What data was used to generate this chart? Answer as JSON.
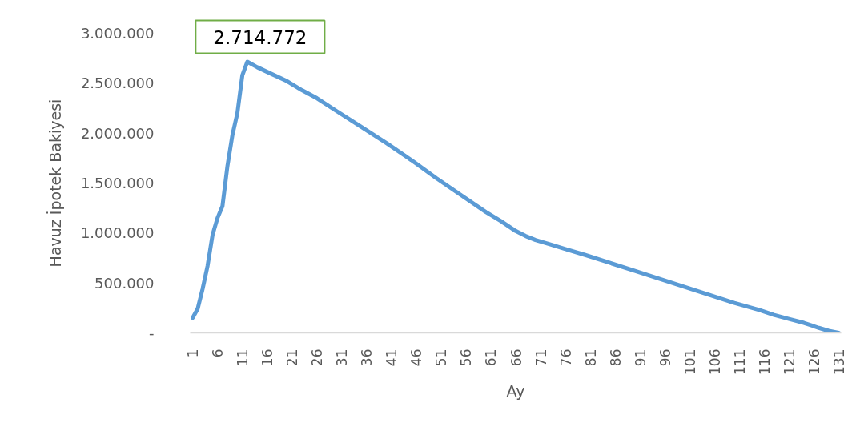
{
  "chart_data": {
    "type": "line",
    "xlabel": "Ay",
    "ylabel": "Havuz İpotek Bakiyesi",
    "x": [
      1,
      2,
      3,
      4,
      5,
      6,
      7,
      8,
      9,
      10,
      11,
      12,
      14,
      17,
      20,
      23,
      26,
      30,
      35,
      40,
      45,
      50,
      55,
      60,
      63,
      66,
      68,
      70,
      73,
      76,
      80,
      85,
      90,
      95,
      100,
      105,
      110,
      115,
      118,
      121,
      124,
      127,
      129,
      131
    ],
    "series": [
      {
        "color": "#5b9bd5",
        "values": [
          150000,
          240000,
          440000,
          670000,
          980000,
          1150000,
          1270000,
          1670000,
          1980000,
          2200000,
          2580000,
          2714772,
          2660000,
          2590000,
          2520000,
          2430000,
          2350000,
          2220000,
          2060000,
          1900000,
          1730000,
          1550000,
          1380000,
          1210000,
          1120000,
          1020000,
          970000,
          930000,
          885000,
          840000,
          780000,
          700000,
          620000,
          540000,
          460000,
          380000,
          300000,
          230000,
          180000,
          140000,
          100000,
          50000,
          20000,
          0
        ]
      }
    ],
    "xlim": [
      0.5,
      131.5
    ],
    "xticks": [
      1,
      6,
      11,
      16,
      21,
      26,
      31,
      36,
      41,
      46,
      51,
      56,
      61,
      66,
      71,
      76,
      81,
      86,
      91,
      96,
      101,
      106,
      111,
      116,
      121,
      126,
      131
    ],
    "ylim": [
      0,
      3000000
    ],
    "yticks": [
      {
        "value": 0,
        "label": "-"
      },
      {
        "value": 500000,
        "label": "500.000"
      },
      {
        "value": 1000000,
        "label": "1.000.000"
      },
      {
        "value": 1500000,
        "label": "1.500.000"
      },
      {
        "value": 2000000,
        "label": "2.000.000"
      },
      {
        "value": 2500000,
        "label": "2.500.000"
      },
      {
        "value": 3000000,
        "label": "3.000.000"
      }
    ],
    "annotations": [
      {
        "text": "2.714.772",
        "x": 12,
        "y": 2714772
      }
    ],
    "grid": false
  }
}
